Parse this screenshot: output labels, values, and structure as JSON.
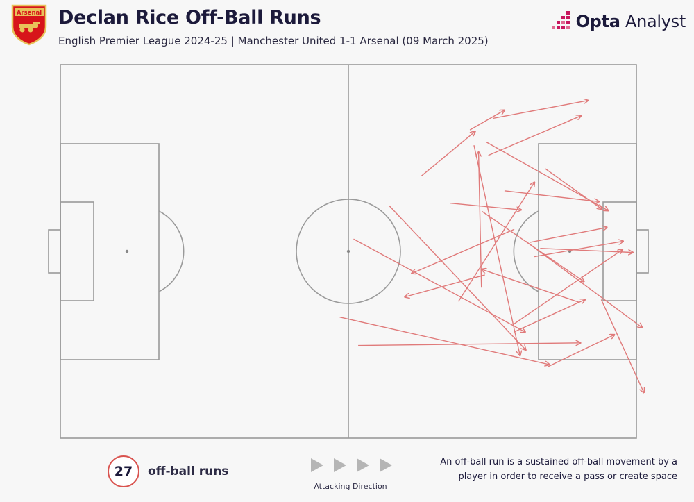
{
  "header": {
    "title": "Declan Rice Off-Ball Runs",
    "subtitle": "English Premier League 2024-25 | Manchester United 1-1 Arsenal (09 March 2025)",
    "club_crest_text": "Arsenal",
    "brand_bold": "Opta",
    "brand_light": " Analyst"
  },
  "colors": {
    "run_arrow": "#e07a7a",
    "pitch_line": "#9a9a9a",
    "crest_red": "#d7141a",
    "crest_gold": "#e8c35a",
    "brand_pink": "#c8175e"
  },
  "chart_data": {
    "type": "scatter",
    "description": "Arrows on a horizontal football pitch; coordinates in Opta pitch units (x 0-100 left to right, attacking right; y 0-100 top to bottom)",
    "runs": [
      {
        "x1": 62.7,
        "y1": 29.8,
        "x2": 72.0,
        "y2": 17.9
      },
      {
        "x1": 71.1,
        "y1": 17.5,
        "x2": 77.1,
        "y2": 12.2
      },
      {
        "x1": 75.1,
        "y1": 14.4,
        "x2": 91.6,
        "y2": 9.6
      },
      {
        "x1": 74.3,
        "y1": 24.3,
        "x2": 90.4,
        "y2": 13.7
      },
      {
        "x1": 73.9,
        "y1": 20.7,
        "x2": 95.1,
        "y2": 39.1
      },
      {
        "x1": 84.2,
        "y1": 27.9,
        "x2": 94.0,
        "y2": 38.7
      },
      {
        "x1": 77.1,
        "y1": 33.8,
        "x2": 93.5,
        "y2": 36.7
      },
      {
        "x1": 67.6,
        "y1": 37.1,
        "x2": 80.0,
        "y2": 38.9
      },
      {
        "x1": 71.8,
        "y1": 21.6,
        "x2": 79.8,
        "y2": 77.9
      },
      {
        "x1": 73.1,
        "y1": 59.7,
        "x2": 72.6,
        "y2": 23.4
      },
      {
        "x1": 69.1,
        "y1": 63.4,
        "x2": 82.3,
        "y2": 31.5
      },
      {
        "x1": 73.2,
        "y1": 39.3,
        "x2": 90.9,
        "y2": 58.1
      },
      {
        "x1": 57.1,
        "y1": 37.8,
        "x2": 80.8,
        "y2": 76.4
      },
      {
        "x1": 78.8,
        "y1": 44.1,
        "x2": 61.0,
        "y2": 55.9
      },
      {
        "x1": 73.7,
        "y1": 56.3,
        "x2": 59.8,
        "y2": 62.2
      },
      {
        "x1": 81.5,
        "y1": 47.6,
        "x2": 94.9,
        "y2": 43.6
      },
      {
        "x1": 83.3,
        "y1": 49.2,
        "x2": 99.4,
        "y2": 50.3
      },
      {
        "x1": 82.3,
        "y1": 51.4,
        "x2": 97.7,
        "y2": 47.3
      },
      {
        "x1": 80.8,
        "y1": 47.3,
        "x2": 101.0,
        "y2": 70.4
      },
      {
        "x1": 78.6,
        "y1": 69.6,
        "x2": 97.6,
        "y2": 49.5
      },
      {
        "x1": 78.7,
        "y1": 71.6,
        "x2": 91.1,
        "y2": 62.9
      },
      {
        "x1": 50.9,
        "y1": 46.7,
        "x2": 80.7,
        "y2": 71.6
      },
      {
        "x1": 48.5,
        "y1": 67.6,
        "x2": 84.9,
        "y2": 80.3
      },
      {
        "x1": 51.7,
        "y1": 75.2,
        "x2": 90.3,
        "y2": 74.5
      },
      {
        "x1": 84.6,
        "y1": 80.9,
        "x2": 96.2,
        "y2": 72.3
      },
      {
        "x1": 93.9,
        "y1": 62.9,
        "x2": 101.3,
        "y2": 87.8
      },
      {
        "x1": 90.0,
        "y1": 63.6,
        "x2": 73.1,
        "y2": 54.8
      }
    ],
    "markings": {
      "penalty_spot_left_x": 11.5,
      "penalty_spot_right_x": 88.5
    }
  },
  "summary": {
    "count": "27",
    "count_label": "off-ball runs"
  },
  "direction": {
    "label": "Attacking Direction"
  },
  "definition": {
    "text": "An off-ball run is a sustained off-ball movement by a player in order to receive a pass or create space"
  }
}
